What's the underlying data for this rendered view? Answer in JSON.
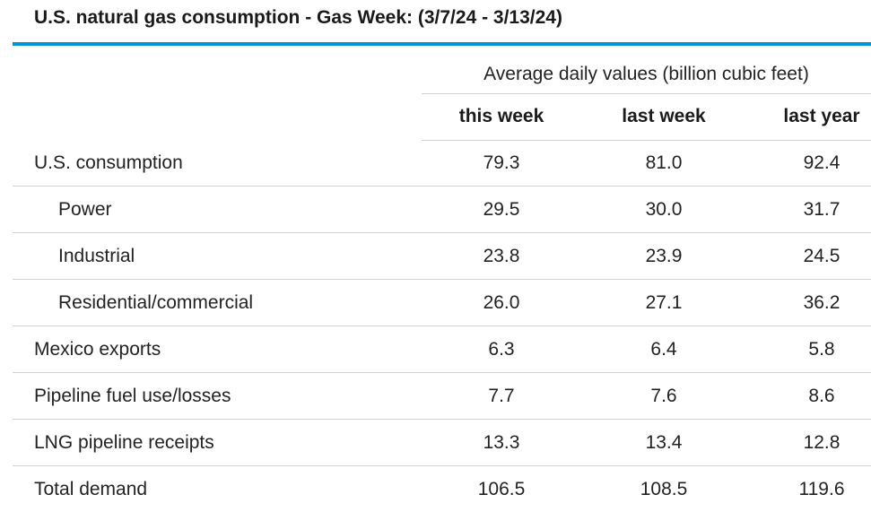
{
  "title": "U.S. natural gas consumption - Gas Week: (3/7/24 - 3/13/24)",
  "colors": {
    "accent_rule": "#0096d6",
    "row_divider": "#d0d0d0",
    "text": "#222222"
  },
  "table": {
    "super_header": "Average daily values (billion cubic feet)",
    "columns": [
      "this week",
      "last week",
      "last year"
    ],
    "rows": [
      {
        "label": "U.S. consumption",
        "indent": 0,
        "values": [
          "79.3",
          "81.0",
          "92.4"
        ]
      },
      {
        "label": "Power",
        "indent": 1,
        "values": [
          "29.5",
          "30.0",
          "31.7"
        ]
      },
      {
        "label": "Industrial",
        "indent": 1,
        "values": [
          "23.8",
          "23.9",
          "24.5"
        ]
      },
      {
        "label": "Residential/commercial",
        "indent": 1,
        "values": [
          "26.0",
          "27.1",
          "36.2"
        ]
      },
      {
        "label": "Mexico exports",
        "indent": 0,
        "values": [
          "6.3",
          "6.4",
          "5.8"
        ]
      },
      {
        "label": "Pipeline fuel use/losses",
        "indent": 0,
        "values": [
          "7.7",
          "7.6",
          "8.6"
        ]
      },
      {
        "label": "LNG pipeline receipts",
        "indent": 0,
        "values": [
          "13.3",
          "13.4",
          "12.8"
        ]
      },
      {
        "label": "Total demand",
        "indent": 0,
        "values": [
          "106.5",
          "108.5",
          "119.6"
        ]
      }
    ]
  }
}
